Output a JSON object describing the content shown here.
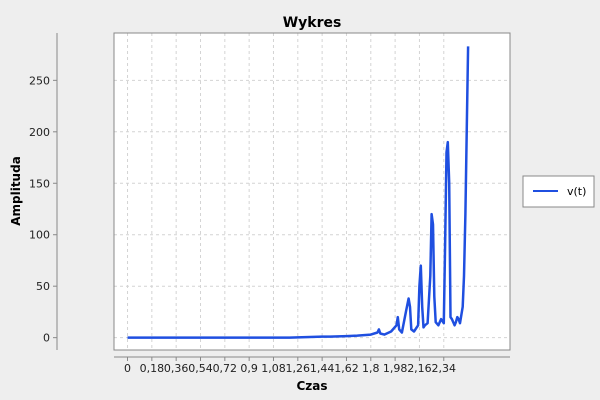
{
  "chart_data": {
    "type": "line",
    "title": "Wykres",
    "xlabel": "Czas",
    "ylabel": "Amplituda",
    "xlim": [
      -0.1,
      2.83
    ],
    "ylim": [
      -12,
      296
    ],
    "x_ticks": [
      0,
      0.18,
      0.36,
      0.54,
      0.72,
      0.9,
      1.08,
      1.26,
      1.44,
      1.62,
      1.8,
      1.98,
      2.16,
      2.34
    ],
    "x_tick_labels": [
      "0",
      "0,18",
      "0,36",
      "0,54",
      "0,72",
      "0,9",
      "1,08",
      "1,26",
      "1,44",
      "1,62",
      "1,8",
      "1,98",
      "2,16",
      "2,34"
    ],
    "y_ticks": [
      0,
      50,
      100,
      150,
      200,
      250
    ],
    "y_tick_labels": [
      "0",
      "50",
      "100",
      "150",
      "200",
      "250"
    ],
    "grid": true,
    "legend_position": "right",
    "series": [
      {
        "name": "v(t)",
        "color": "#1f4fe0",
        "x": [
          0,
          1.2,
          1.44,
          1.5,
          1.62,
          1.7,
          1.8,
          1.85,
          1.86,
          1.87,
          1.9,
          1.95,
          1.99,
          2.0,
          2.01,
          2.03,
          2.06,
          2.08,
          2.09,
          2.1,
          2.12,
          2.15,
          2.16,
          2.17,
          2.18,
          2.19,
          2.2,
          2.22,
          2.24,
          2.25,
          2.26,
          2.27,
          2.28,
          2.3,
          2.32,
          2.34,
          2.35,
          2.36,
          2.37,
          2.38,
          2.39,
          2.4,
          2.42,
          2.43,
          2.44,
          2.45,
          2.46,
          2.48,
          2.49,
          2.5,
          2.51,
          2.52
        ],
        "y": [
          0,
          0,
          1,
          1,
          1.5,
          2,
          3,
          5,
          8,
          4,
          3,
          6,
          12,
          20,
          8,
          5,
          25,
          38,
          30,
          8,
          6,
          12,
          50,
          70,
          30,
          10,
          12,
          14,
          60,
          120,
          110,
          40,
          15,
          12,
          18,
          14,
          90,
          180,
          190,
          150,
          20,
          18,
          12,
          15,
          20,
          18,
          14,
          30,
          60,
          120,
          205,
          283
        ]
      }
    ]
  }
}
